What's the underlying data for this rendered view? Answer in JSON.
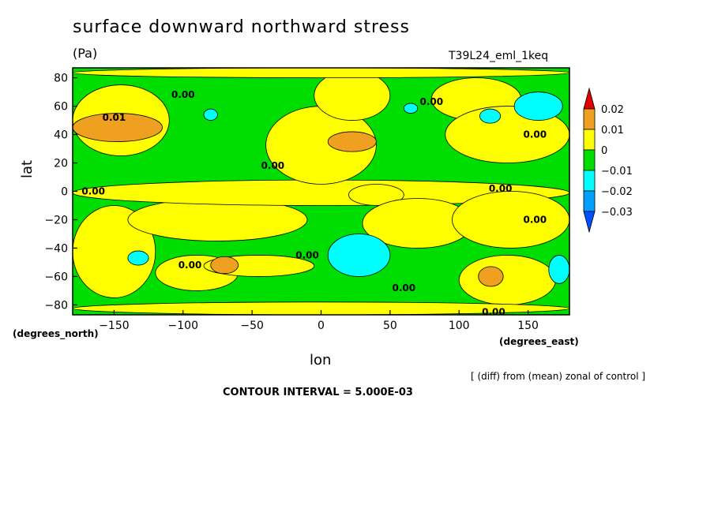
{
  "chart_data": {
    "type": "heatmap",
    "title": "surface downward northward stress",
    "units": "(Pa)",
    "experiment": "T39L24_eml_1keq",
    "xlabel": "lon",
    "ylabel": "lat",
    "x_units": "(degrees_east)",
    "y_units": "(degrees_north)",
    "note": "[ (diff) from (mean) zonal of control ]",
    "contour_interval": "CONTOUR INTERVAL = 5.000E-03",
    "xlim": [
      -180,
      180
    ],
    "ylim": [
      -87,
      87
    ],
    "x_ticks": [
      -150,
      -100,
      -50,
      0,
      50,
      100,
      150
    ],
    "y_ticks": [
      80,
      60,
      40,
      20,
      0,
      -20,
      -40,
      -60,
      -80
    ],
    "colorbar": {
      "levels": [
        "0.02",
        "0.01",
        "0",
        "-0.01",
        "-0.02",
        "-0.03"
      ],
      "colors": [
        "#e00000",
        "#f0a020",
        "#ffff00",
        "#00dd00",
        "#00ffff",
        "#00a0ff",
        "#0050ff"
      ]
    },
    "contour_labels": [
      {
        "text": "0.00",
        "lon": -100,
        "lat": 68
      },
      {
        "text": "0.01",
        "lon": -150,
        "lat": 52
      },
      {
        "text": "0.00",
        "lon": -165,
        "lat": 0
      },
      {
        "text": "0.00",
        "lon": 80,
        "lat": 63
      },
      {
        "text": "0.00",
        "lon": 155,
        "lat": 40
      },
      {
        "text": "0.00",
        "lon": -35,
        "lat": 18
      },
      {
        "text": "0.00",
        "lon": 130,
        "lat": 2
      },
      {
        "text": "0.00",
        "lon": 155,
        "lat": -20
      },
      {
        "text": "0.00",
        "lon": -95,
        "lat": -52
      },
      {
        "text": "0.00",
        "lon": -10,
        "lat": -45
      },
      {
        "text": "0.00",
        "lon": 60,
        "lat": -68
      },
      {
        "text": "0.00",
        "lon": 125,
        "lat": -85
      }
    ],
    "regions": [
      {
        "value": "-0.01",
        "lon": [
          -180,
          180
        ],
        "lat": [
          -87,
          87
        ],
        "shape": "rect"
      },
      {
        "value": "0",
        "lon": [
          -180,
          -120
        ],
        "lat": [
          -75,
          -10
        ]
      },
      {
        "value": "0",
        "lon": [
          -140,
          -10
        ],
        "lat": [
          -35,
          -5
        ]
      },
      {
        "value": "0",
        "lon": [
          -180,
          180
        ],
        "lat": [
          -10,
          8
        ]
      },
      {
        "value": "0",
        "lon": [
          20,
          60
        ],
        "lat": [
          -10,
          5
        ]
      },
      {
        "value": "0",
        "lon": [
          30,
          110
        ],
        "lat": [
          -40,
          -5
        ]
      },
      {
        "value": "0",
        "lon": [
          95,
          180
        ],
        "lat": [
          -40,
          0
        ]
      },
      {
        "value": "0",
        "lon": [
          -180,
          -110
        ],
        "lat": [
          25,
          75
        ]
      },
      {
        "value": "0",
        "lon": [
          -40,
          40
        ],
        "lat": [
          5,
          60
        ]
      },
      {
        "value": "0",
        "lon": [
          -5,
          50
        ],
        "lat": [
          50,
          85
        ]
      },
      {
        "value": "0",
        "lon": [
          80,
          145
        ],
        "lat": [
          50,
          80
        ]
      },
      {
        "value": "0",
        "lon": [
          90,
          180
        ],
        "lat": [
          20,
          60
        ]
      },
      {
        "value": "0",
        "lon": [
          -120,
          -60
        ],
        "lat": [
          -70,
          -45
        ]
      },
      {
        "value": "0",
        "lon": [
          -85,
          -5
        ],
        "lat": [
          -60,
          -45
        ]
      },
      {
        "value": "0",
        "lon": [
          100,
          170
        ],
        "lat": [
          -80,
          -45
        ]
      },
      {
        "value": "0",
        "lon": [
          -180,
          180
        ],
        "lat": [
          -87,
          -78
        ]
      },
      {
        "value": "0",
        "lon": [
          -180,
          180
        ],
        "lat": [
          80,
          87
        ]
      },
      {
        "value": "0.01",
        "lon": [
          -180,
          -115
        ],
        "lat": [
          35,
          55
        ]
      },
      {
        "value": "0.01",
        "lon": [
          5,
          40
        ],
        "lat": [
          28,
          42
        ]
      },
      {
        "value": "0.01",
        "lon": [
          -80,
          -60
        ],
        "lat": [
          -58,
          -46
        ]
      },
      {
        "value": "0.01",
        "lon": [
          114,
          132
        ],
        "lat": [
          -67,
          -53
        ]
      },
      {
        "value": "-0.02",
        "lon": [
          5,
          50
        ],
        "lat": [
          -60,
          -30
        ]
      },
      {
        "value": "-0.02",
        "lon": [
          -140,
          -125
        ],
        "lat": [
          -52,
          -42
        ]
      },
      {
        "value": "-0.02",
        "lon": [
          165,
          180
        ],
        "lat": [
          -65,
          -45
        ]
      },
      {
        "value": "-0.02",
        "lon": [
          140,
          175
        ],
        "lat": [
          50,
          70
        ]
      },
      {
        "value": "-0.02",
        "lon": [
          -85,
          -75
        ],
        "lat": [
          50,
          58
        ]
      },
      {
        "value": "-0.02",
        "lon": [
          60,
          70
        ],
        "lat": [
          55,
          62
        ]
      },
      {
        "value": "-0.02",
        "lon": [
          115,
          130
        ],
        "lat": [
          48,
          58
        ]
      }
    ]
  }
}
